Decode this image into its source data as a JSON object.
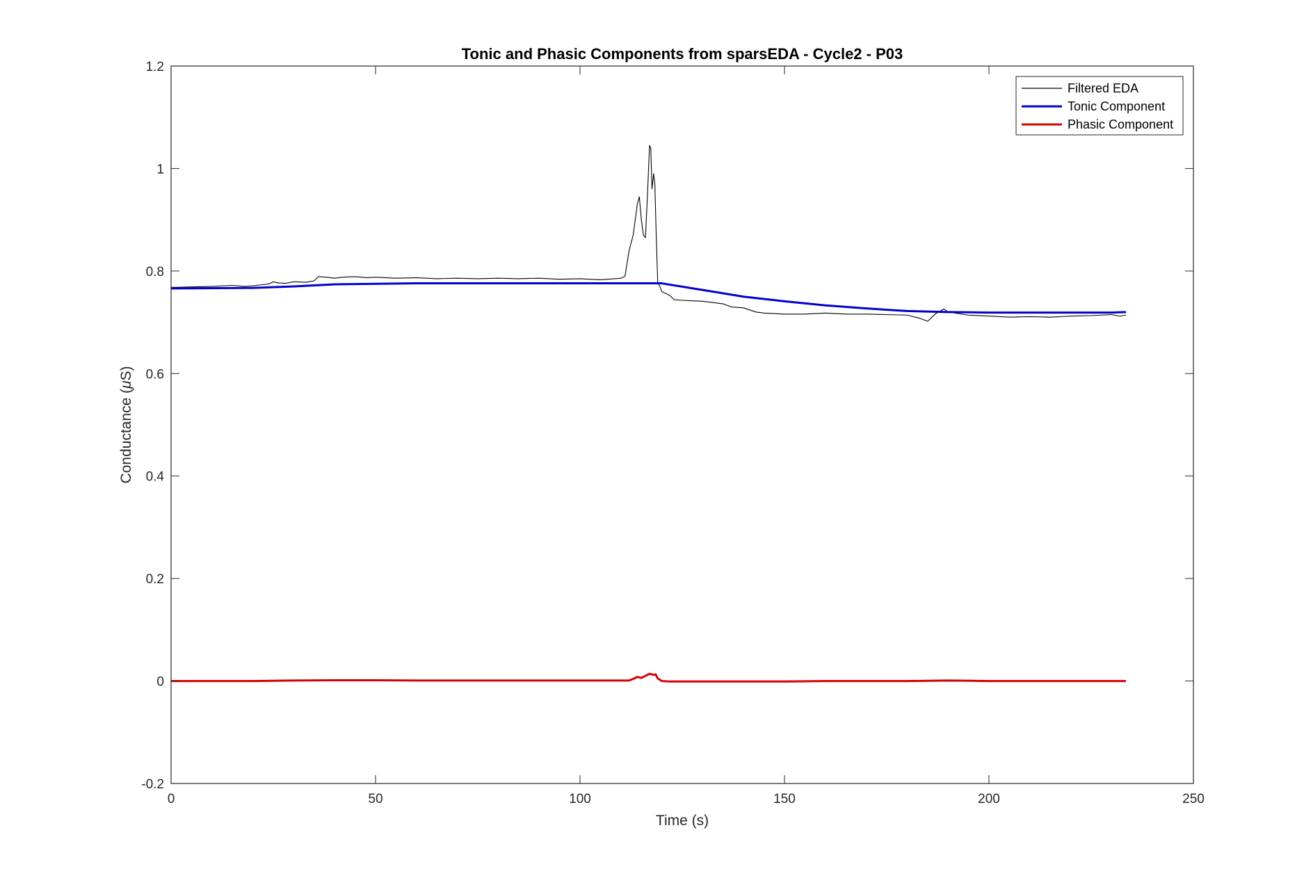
{
  "chart_data": {
    "type": "line",
    "title": "Tonic and Phasic Components from sparsEDA - Cycle2 - P03",
    "xlabel": "Time (s)",
    "ylabel_prefix": "Conductance (",
    "ylabel_mu": "μ",
    "ylabel_suffix": "S)",
    "xlim": [
      0,
      250
    ],
    "ylim": [
      -0.2,
      1.2
    ],
    "xticks": [
      0,
      50,
      100,
      150,
      200,
      250
    ],
    "xtick_labels": [
      "0",
      "50",
      "100",
      "150",
      "200",
      "250"
    ],
    "yticks": [
      -0.2,
      0,
      0.2,
      0.4,
      0.6,
      0.8,
      1,
      1.2
    ],
    "ytick_labels": [
      "-0.2",
      "0",
      "0.2",
      "0.4",
      "0.6",
      "0.8",
      "1",
      "1.2"
    ],
    "grid": false,
    "legend_position": "top-right",
    "series": [
      {
        "name": "Filtered EDA",
        "color": "#000000",
        "x": [
          0,
          5,
          10,
          15,
          18,
          20,
          22,
          24,
          25,
          26,
          28,
          30,
          33,
          35,
          36,
          38,
          40,
          42,
          45,
          48,
          50,
          55,
          60,
          65,
          70,
          75,
          80,
          85,
          90,
          95,
          100,
          105,
          110,
          111,
          112,
          113,
          114,
          114.5,
          115,
          115.5,
          116,
          116.5,
          117,
          117.3,
          117.6,
          118,
          118.3,
          118.6,
          119,
          119.5,
          120,
          121,
          122,
          123,
          125,
          127,
          130,
          133,
          135,
          137,
          140,
          143,
          145,
          150,
          155,
          160,
          165,
          170,
          175,
          180,
          183,
          185,
          187,
          189,
          190,
          195,
          200,
          205,
          210,
          215,
          220,
          225,
          230,
          232,
          233.5
        ],
        "y": [
          0.768,
          0.769,
          0.77,
          0.772,
          0.77,
          0.771,
          0.773,
          0.775,
          0.779,
          0.777,
          0.776,
          0.779,
          0.778,
          0.781,
          0.789,
          0.788,
          0.786,
          0.788,
          0.789,
          0.787,
          0.788,
          0.786,
          0.787,
          0.785,
          0.786,
          0.785,
          0.786,
          0.785,
          0.786,
          0.784,
          0.785,
          0.783,
          0.786,
          0.79,
          0.84,
          0.87,
          0.93,
          0.945,
          0.9,
          0.87,
          0.865,
          0.95,
          1.045,
          1.04,
          0.96,
          0.99,
          0.97,
          0.88,
          0.778,
          0.77,
          0.76,
          0.756,
          0.752,
          0.744,
          0.743,
          0.742,
          0.741,
          0.738,
          0.736,
          0.73,
          0.728,
          0.72,
          0.718,
          0.716,
          0.716,
          0.718,
          0.716,
          0.716,
          0.715,
          0.714,
          0.708,
          0.702,
          0.717,
          0.726,
          0.72,
          0.714,
          0.712,
          0.71,
          0.711,
          0.71,
          0.712,
          0.713,
          0.715,
          0.712,
          0.714
        ]
      },
      {
        "name": "Tonic Component",
        "color": "#0000cc",
        "x": [
          0,
          20,
          30,
          40,
          50,
          60,
          80,
          100,
          110,
          120,
          130,
          140,
          150,
          160,
          170,
          180,
          190,
          200,
          210,
          220,
          230,
          233.5
        ],
        "y": [
          0.766,
          0.767,
          0.77,
          0.774,
          0.775,
          0.776,
          0.776,
          0.776,
          0.776,
          0.776,
          0.763,
          0.75,
          0.741,
          0.733,
          0.727,
          0.722,
          0.72,
          0.719,
          0.719,
          0.719,
          0.719,
          0.72
        ]
      },
      {
        "name": "Phasic Component",
        "color": "#d40000",
        "x": [
          0,
          20,
          30,
          40,
          50,
          60,
          80,
          100,
          110,
          112,
          113,
          114,
          115,
          116,
          117,
          118,
          118.5,
          119,
          120,
          122,
          125,
          140,
          150,
          160,
          180,
          190,
          200,
          233.5
        ],
        "y": [
          0.0,
          0.0,
          0.001,
          0.0015,
          0.0015,
          0.001,
          0.001,
          0.001,
          0.001,
          0.001,
          0.004,
          0.008,
          0.006,
          0.01,
          0.014,
          0.012,
          0.013,
          0.005,
          0.0,
          -0.001,
          -0.001,
          -0.001,
          -0.001,
          0.0,
          0.0,
          0.001,
          0.0,
          0.0
        ]
      }
    ]
  }
}
